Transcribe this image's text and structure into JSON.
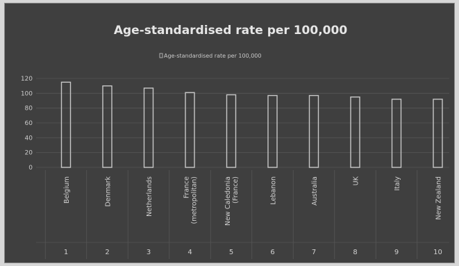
{
  "chart_data": {
    "type": "bar",
    "title": "Age-standardised rate per 100,000",
    "legend": {
      "position": "top",
      "entries": [
        "Age-standardised rate per 100,000"
      ]
    },
    "series": [
      {
        "name": "Age-standardised rate per 100,000",
        "values": [
          115,
          110,
          107,
          101,
          98,
          97,
          97,
          95,
          92,
          92
        ]
      }
    ],
    "categories": [
      "Belgium",
      "Denmark",
      "Netherlands",
      "France (metropolitan)",
      "New Caledonia (France)",
      "Lebanon",
      "Australia",
      "UK",
      "Italy",
      "New Zealand"
    ],
    "ranks": [
      "1",
      "2",
      "3",
      "4",
      "5",
      "6",
      "7",
      "8",
      "9",
      "10"
    ],
    "y_ticks": [
      "120",
      "100",
      "80",
      "60",
      "40",
      "20",
      "0"
    ],
    "ylim": [
      0,
      120
    ],
    "grid": true,
    "colors": {
      "background": "#3f3f3f",
      "bar_outline": "#c8c8c8",
      "text": "#e6e6e6"
    }
  }
}
